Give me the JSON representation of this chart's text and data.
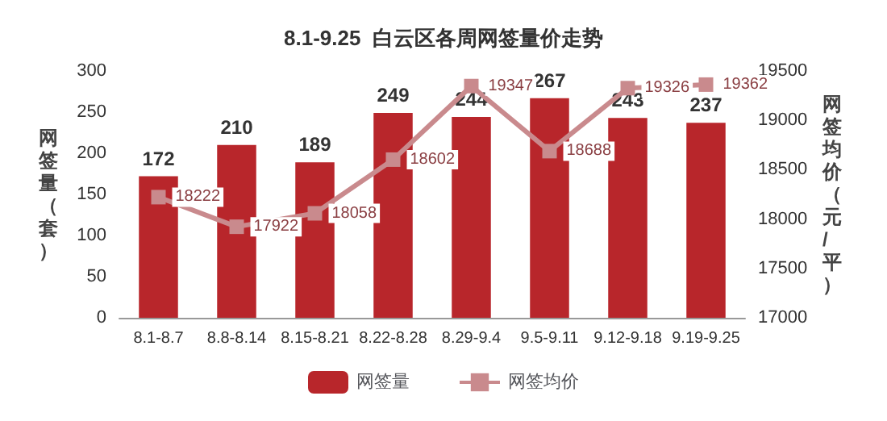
{
  "chart_data": {
    "type": "bar",
    "title": "8.1-9.25  白云区各周网签量价走势",
    "ylabel": "网签量（套）",
    "y2label": "网签均价（元/平）",
    "categories": [
      "8.1-8.7",
      "8.8-8.14",
      "8.15-8.21",
      "8.22-8.28",
      "8.29-9.4",
      "9.5-9.11",
      "9.12-9.18",
      "9.19-9.25"
    ],
    "series": [
      {
        "name": "网签量",
        "type": "bar",
        "color": "#b8262b",
        "values": [
          172,
          210,
          189,
          249,
          244,
          267,
          243,
          237
        ]
      },
      {
        "name": "网签均价",
        "type": "line",
        "axis": "y2",
        "color": "#c98a8d",
        "values": [
          18222,
          17922,
          18058,
          18602,
          19347,
          18688,
          19326,
          19362
        ]
      }
    ],
    "ylim": [
      0,
      300
    ],
    "yticks": [
      0,
      50,
      100,
      150,
      200,
      250,
      300
    ],
    "y2lim": [
      17000,
      19500
    ],
    "y2ticks": [
      17000,
      17500,
      18000,
      18500,
      19000,
      19500
    ],
    "data_labels": true,
    "grid": false,
    "legend": "bottom",
    "marker": "square",
    "line_style": "solid"
  }
}
